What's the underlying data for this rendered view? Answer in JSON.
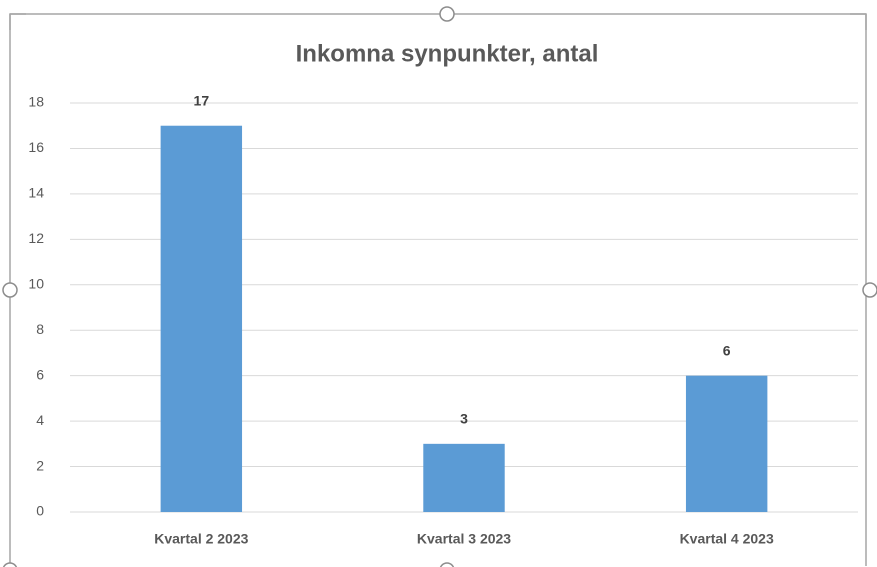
{
  "chart_data": {
    "type": "bar",
    "title": "Inkomna synpunkter, antal",
    "categories": [
      "Kvartal 2 2023",
      "Kvartal 3 2023",
      "Kvartal 4 2023"
    ],
    "values": [
      17,
      3,
      6
    ],
    "color": "#5b9bd5",
    "ylim": [
      0,
      18
    ],
    "yticks": [
      0,
      2,
      4,
      6,
      8,
      10,
      12,
      14,
      16,
      18
    ],
    "grid": true
  }
}
